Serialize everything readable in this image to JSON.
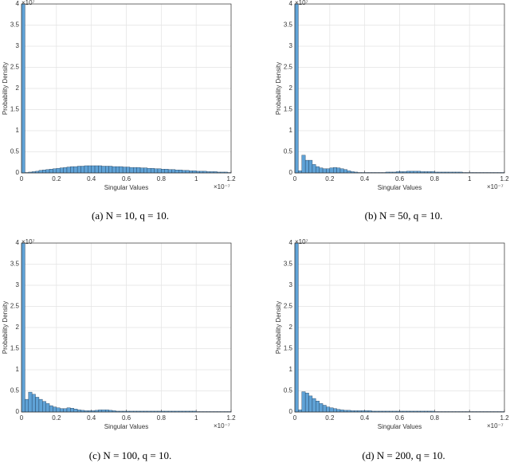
{
  "chart_data": [
    {
      "type": "histogram",
      "caption": "(a)  N = 10, q = 10.",
      "x_label": "Singular Values",
      "y_label": "Probability Density",
      "x_exponent": "×10⁻⁷",
      "y_exponent": "×10⁷",
      "color": "#5fa2d6",
      "grid": true,
      "bins": [
        0,
        0.02,
        0.04,
        0.06,
        0.08,
        0.1,
        0.12,
        0.14,
        0.16,
        0.18,
        0.2,
        0.22,
        0.24,
        0.26,
        0.28,
        0.3,
        0.32,
        0.34,
        0.36,
        0.38,
        0.4,
        0.42,
        0.44,
        0.46,
        0.48,
        0.5,
        0.52,
        0.54,
        0.56,
        0.58,
        0.6,
        0.62,
        0.64,
        0.66,
        0.68,
        0.7,
        0.72,
        0.74,
        0.76,
        0.78,
        0.8,
        0.82,
        0.84,
        0.86,
        0.88,
        0.9,
        0.92,
        0.94,
        0.96,
        0.98,
        1,
        1.02,
        1.04,
        1.06,
        1.08,
        1.1,
        1.12,
        1.14,
        1.16,
        1.18,
        1.2
      ],
      "values": [
        4.0,
        0.01,
        0.02,
        0.03,
        0.04,
        0.06,
        0.07,
        0.08,
        0.09,
        0.1,
        0.11,
        0.12,
        0.13,
        0.14,
        0.15,
        0.15,
        0.16,
        0.16,
        0.17,
        0.17,
        0.17,
        0.17,
        0.17,
        0.16,
        0.16,
        0.16,
        0.15,
        0.15,
        0.15,
        0.14,
        0.14,
        0.13,
        0.13,
        0.13,
        0.12,
        0.12,
        0.11,
        0.11,
        0.1,
        0.1,
        0.09,
        0.09,
        0.08,
        0.08,
        0.07,
        0.07,
        0.06,
        0.06,
        0.05,
        0.05,
        0.04,
        0.04,
        0.04,
        0.03,
        0.03,
        0.03,
        0.02,
        0.02,
        0.02,
        0.01
      ],
      "xlim": [
        0,
        1.2
      ],
      "xticks": [
        0,
        0.2,
        0.4,
        0.6,
        0.8,
        1,
        1.2
      ],
      "ylim": [
        0,
        4
      ],
      "yticks": [
        0,
        0.5,
        1,
        1.5,
        2,
        2.5,
        3,
        3.5,
        4
      ]
    },
    {
      "type": "histogram",
      "caption": "(b)  N = 50, q = 10.",
      "x_label": "Singular Values",
      "y_label": "Probability Density",
      "x_exponent": "×10⁻⁷",
      "y_exponent": "×10⁷",
      "color": "#5fa2d6",
      "grid": true,
      "bins": [
        0,
        0.02,
        0.04,
        0.06,
        0.08,
        0.1,
        0.12,
        0.14,
        0.16,
        0.18,
        0.2,
        0.22,
        0.24,
        0.26,
        0.28,
        0.3,
        0.32,
        0.34,
        0.36,
        0.38,
        0.4,
        0.42,
        0.44,
        0.46,
        0.48,
        0.5,
        0.52,
        0.54,
        0.56,
        0.58,
        0.6,
        0.62,
        0.64,
        0.66,
        0.68,
        0.7,
        0.72,
        0.74,
        0.76,
        0.78,
        0.8,
        0.82,
        0.84,
        0.86,
        0.88,
        0.9,
        0.92,
        0.94,
        0.96,
        0.98,
        1,
        1.02,
        1.04,
        1.06,
        1.08,
        1.1,
        1.12,
        1.14,
        1.16,
        1.18,
        1.2
      ],
      "values": [
        4.0,
        0.05,
        0.42,
        0.3,
        0.3,
        0.2,
        0.15,
        0.12,
        0.1,
        0.1,
        0.12,
        0.13,
        0.12,
        0.1,
        0.08,
        0.05,
        0.03,
        0.02,
        0.01,
        0.01,
        0.01,
        0.01,
        0.01,
        0.01,
        0.01,
        0.01,
        0.02,
        0.02,
        0.02,
        0.03,
        0.03,
        0.03,
        0.04,
        0.04,
        0.04,
        0.04,
        0.03,
        0.03,
        0.03,
        0.03,
        0.02,
        0.02,
        0.02,
        0.02,
        0.02,
        0.02,
        0.02,
        0.02,
        0.01,
        0.01,
        0.01,
        0.01,
        0.01,
        0.01,
        0.01,
        0.01,
        0.01,
        0.01,
        0.01,
        0.01
      ],
      "xlim": [
        0,
        1.2
      ],
      "xticks": [
        0,
        0.2,
        0.4,
        0.6,
        0.8,
        1,
        1.2
      ],
      "ylim": [
        0,
        4
      ],
      "yticks": [
        0,
        0.5,
        1,
        1.5,
        2,
        2.5,
        3,
        3.5,
        4
      ]
    },
    {
      "type": "histogram",
      "caption": "(c)  N = 100, q = 10.",
      "x_label": "Singular Values",
      "y_label": "Probability Density",
      "x_exponent": "×10⁻⁷",
      "y_exponent": "×10⁷",
      "color": "#5fa2d6",
      "grid": true,
      "bins": [
        0,
        0.02,
        0.04,
        0.06,
        0.08,
        0.1,
        0.12,
        0.14,
        0.16,
        0.18,
        0.2,
        0.22,
        0.24,
        0.26,
        0.28,
        0.3,
        0.32,
        0.34,
        0.36,
        0.38,
        0.4,
        0.42,
        0.44,
        0.46,
        0.48,
        0.5,
        0.52,
        0.54,
        0.56,
        0.58,
        0.6,
        0.62,
        0.64,
        0.66,
        0.68,
        0.7,
        0.72,
        0.74,
        0.76,
        0.78,
        0.8,
        0.82,
        0.84,
        0.86,
        0.88,
        0.9,
        0.92,
        0.94,
        0.96,
        0.98,
        1,
        1.02,
        1.04,
        1.06,
        1.08,
        1.1,
        1.12,
        1.14,
        1.16,
        1.18,
        1.2
      ],
      "values": [
        4.0,
        0.3,
        0.47,
        0.42,
        0.35,
        0.3,
        0.25,
        0.2,
        0.15,
        0.12,
        0.1,
        0.08,
        0.08,
        0.1,
        0.09,
        0.07,
        0.05,
        0.04,
        0.03,
        0.03,
        0.03,
        0.04,
        0.05,
        0.05,
        0.05,
        0.04,
        0.03,
        0.02,
        0.02,
        0.02,
        0.02,
        0.02,
        0.02,
        0.02,
        0.02,
        0.02,
        0.02,
        0.02,
        0.02,
        0.02,
        0.02,
        0.02,
        0.02,
        0.02,
        0.02,
        0.02,
        0.02,
        0.02,
        0.02,
        0.02,
        0.01,
        0.01,
        0.01,
        0.01,
        0.01,
        0.01,
        0.01,
        0.01,
        0.01,
        0.01
      ],
      "xlim": [
        0,
        1.2
      ],
      "xticks": [
        0,
        0.2,
        0.4,
        0.6,
        0.8,
        1,
        1.2
      ],
      "ylim": [
        0,
        4
      ],
      "yticks": [
        0,
        0.5,
        1,
        1.5,
        2,
        2.5,
        3,
        3.5,
        4
      ]
    },
    {
      "type": "histogram",
      "caption": "(d)  N = 200, q = 10.",
      "x_label": "Singular Values",
      "y_label": "Probability Density",
      "x_exponent": "×10⁻⁷",
      "y_exponent": "×10⁷",
      "color": "#5fa2d6",
      "grid": true,
      "bins": [
        0,
        0.02,
        0.04,
        0.06,
        0.08,
        0.1,
        0.12,
        0.14,
        0.16,
        0.18,
        0.2,
        0.22,
        0.24,
        0.26,
        0.28,
        0.3,
        0.32,
        0.34,
        0.36,
        0.38,
        0.4,
        0.42,
        0.44,
        0.46,
        0.48,
        0.5,
        0.52,
        0.54,
        0.56,
        0.58,
        0.6,
        0.62,
        0.64,
        0.66,
        0.68,
        0.7,
        0.72,
        0.74,
        0.76,
        0.78,
        0.8,
        0.82,
        0.84,
        0.86,
        0.88,
        0.9,
        0.92,
        0.94,
        0.96,
        0.98,
        1,
        1.02,
        1.04,
        1.06,
        1.08,
        1.1,
        1.12,
        1.14,
        1.16,
        1.18,
        1.2
      ],
      "values": [
        4.0,
        0.05,
        0.48,
        0.45,
        0.38,
        0.32,
        0.26,
        0.2,
        0.16,
        0.12,
        0.1,
        0.08,
        0.06,
        0.05,
        0.04,
        0.04,
        0.03,
        0.03,
        0.03,
        0.03,
        0.03,
        0.03,
        0.02,
        0.02,
        0.02,
        0.02,
        0.02,
        0.02,
        0.02,
        0.02,
        0.02,
        0.02,
        0.02,
        0.02,
        0.02,
        0.02,
        0.02,
        0.02,
        0.02,
        0.02,
        0.01,
        0.01,
        0.01,
        0.01,
        0.01,
        0.01,
        0.01,
        0.01,
        0.01,
        0.01,
        0.01,
        0.01,
        0.01,
        0.01,
        0.01,
        0.01,
        0.01,
        0.01,
        0.01,
        0.01
      ],
      "xlim": [
        0,
        1.2
      ],
      "xticks": [
        0,
        0.2,
        0.4,
        0.6,
        0.8,
        1,
        1.2
      ],
      "ylim": [
        0,
        4
      ],
      "yticks": [
        0,
        0.5,
        1,
        1.5,
        2,
        2.5,
        3,
        3.5,
        4
      ]
    }
  ]
}
